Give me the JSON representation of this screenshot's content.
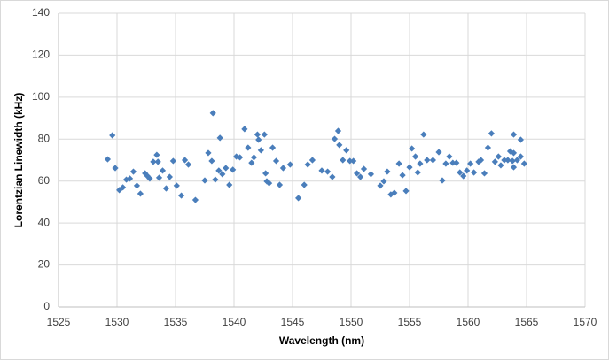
{
  "chart_data": {
    "type": "scatter",
    "x_label": "Wavelength (nm)",
    "y_label": "Lorentzian Linewidth (kHz)",
    "color": "#4a7ebb",
    "grid": true,
    "xlim": [
      1525,
      1570
    ],
    "xticks": [
      1525,
      1530,
      1535,
      1540,
      1545,
      1550,
      1555,
      1560,
      1565,
      1570
    ],
    "ylim": [
      0,
      140
    ],
    "yticks": [
      0,
      20,
      40,
      60,
      80,
      100,
      120,
      140
    ],
    "x": [
      1529.2,
      1529.6,
      1529.85,
      1530.2,
      1530.5,
      1530.8,
      1531.1,
      1531.4,
      1531.7,
      1532.0,
      1532.4,
      1532.6,
      1532.8,
      1533.1,
      1533.4,
      1533.5,
      1533.6,
      1533.9,
      1534.2,
      1534.5,
      1534.8,
      1535.1,
      1535.5,
      1535.8,
      1536.1,
      1536.7,
      1537.5,
      1537.8,
      1538.1,
      1538.2,
      1538.4,
      1538.7,
      1538.8,
      1539.0,
      1539.3,
      1539.6,
      1539.9,
      1540.2,
      1540.5,
      1540.9,
      1541.2,
      1541.5,
      1541.7,
      1542.0,
      1542.1,
      1542.3,
      1542.6,
      1542.7,
      1542.8,
      1543.0,
      1543.3,
      1543.6,
      1543.9,
      1544.2,
      1544.8,
      1545.5,
      1546.0,
      1546.3,
      1546.7,
      1547.5,
      1548.0,
      1548.4,
      1548.6,
      1548.9,
      1549.0,
      1549.3,
      1549.6,
      1549.9,
      1550.2,
      1550.5,
      1550.8,
      1551.1,
      1551.7,
      1552.5,
      1552.8,
      1553.1,
      1553.4,
      1553.7,
      1554.1,
      1554.4,
      1554.7,
      1555.0,
      1555.2,
      1555.5,
      1555.7,
      1555.9,
      1556.2,
      1556.5,
      1557.0,
      1557.5,
      1557.8,
      1558.1,
      1558.4,
      1558.7,
      1559.0,
      1559.3,
      1559.6,
      1559.9,
      1560.2,
      1560.5,
      1560.9,
      1561.1,
      1561.4,
      1561.7,
      1562.0,
      1562.3,
      1562.6,
      1562.8,
      1563.1,
      1563.4,
      1563.6,
      1563.8,
      1563.9,
      1563.9,
      1563.9,
      1564.2,
      1564.5,
      1564.5,
      1564.8
    ],
    "values": [
      70.4,
      81.8,
      66.2,
      55.7,
      57,
      60.7,
      61.2,
      64.5,
      57.8,
      54,
      63.7,
      62.4,
      61.2,
      69.2,
      72.5,
      69.2,
      61.6,
      65,
      56.5,
      62,
      69.6,
      57.8,
      53.1,
      70,
      67.9,
      51,
      60.3,
      73.4,
      69.6,
      92.4,
      60.7,
      65,
      80.6,
      63.3,
      66.2,
      58.2,
      65.4,
      71.7,
      71.3,
      84.8,
      75.9,
      68.7,
      71.3,
      82.2,
      79.7,
      74.7,
      82.2,
      63.7,
      59.9,
      59,
      75.9,
      69.6,
      58.2,
      66.2,
      67.9,
      51.9,
      58.2,
      67.9,
      70,
      65,
      64.5,
      62,
      80.1,
      83.9,
      77.2,
      70,
      74.7,
      69.6,
      69.6,
      63.7,
      62,
      65.8,
      63.3,
      57.8,
      59.9,
      64.5,
      53.6,
      54.4,
      68.3,
      62.8,
      55.3,
      66.6,
      75.5,
      71.7,
      64.1,
      68.3,
      82.2,
      70,
      70,
      73.8,
      60.3,
      68.3,
      71.7,
      68.7,
      68.7,
      64.1,
      62.4,
      65,
      68.3,
      64.1,
      69.2,
      70,
      63.7,
      75.9,
      82.7,
      69.2,
      71.7,
      67.5,
      70,
      70,
      74.2,
      69.6,
      73.4,
      82.2,
      66.6,
      70,
      71.7,
      79.7,
      68.3
    ]
  }
}
